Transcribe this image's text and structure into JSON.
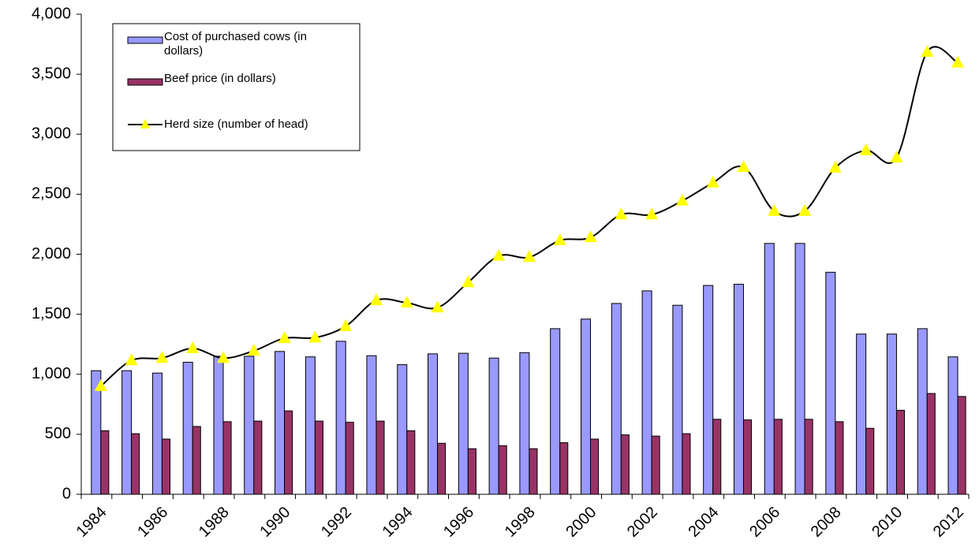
{
  "chart_data": {
    "type": "bar",
    "categories": [
      "1984",
      null,
      "1986",
      null,
      "1988",
      null,
      "1990",
      null,
      "1992",
      null,
      "1994",
      null,
      "1996",
      null,
      "1998",
      null,
      "2000",
      null,
      "2002",
      null,
      "2004",
      null,
      "2006",
      null,
      "2008",
      null,
      "2010",
      null,
      "2012"
    ],
    "series": [
      {
        "name": "Cost of purchased cows (in dollars)",
        "color": "#9999ff",
        "type": "bar",
        "values": [
          1030,
          1030,
          1010,
          1100,
          1150,
          1150,
          1190,
          1145,
          1275,
          1155,
          1080,
          1170,
          1175,
          1135,
          1180,
          1380,
          1460,
          1590,
          1695,
          1575,
          1740,
          1750,
          2090,
          2090,
          1850,
          1335,
          1335,
          1380,
          1145
        ]
      },
      {
        "name": "Beef price (in dollars)",
        "color": "#993366",
        "type": "bar",
        "values": [
          530,
          505,
          460,
          565,
          605,
          610,
          695,
          610,
          600,
          610,
          530,
          425,
          380,
          405,
          380,
          430,
          460,
          495,
          485,
          505,
          625,
          620,
          625,
          625,
          605,
          550,
          700,
          840,
          815
        ]
      },
      {
        "name": "Herd size (number of head)",
        "color": "#ffff00",
        "type": "line",
        "values": [
          900,
          1115,
          1135,
          1215,
          1135,
          1195,
          1300,
          1305,
          1400,
          1615,
          1595,
          1555,
          1765,
          1985,
          1975,
          2115,
          2140,
          2330,
          2330,
          2445,
          2595,
          2725,
          2360,
          2360,
          2720,
          2865,
          2805,
          3685,
          3595
        ]
      }
    ],
    "ylim": [
      0,
      4000
    ],
    "yticks": [
      0,
      500,
      {
        "value": 1000,
        "label": "1,000"
      },
      {
        "value": 1500,
        "label": "1,500"
      },
      {
        "value": 2000,
        "label": "2,000"
      },
      {
        "value": 2500,
        "label": "2,500"
      },
      {
        "value": 3000,
        "label": "3,000"
      },
      {
        "value": 3500,
        "label": "3,500"
      },
      {
        "value": 4000,
        "label": "4,000"
      }
    ],
    "grid": false,
    "legend": "top-left"
  }
}
